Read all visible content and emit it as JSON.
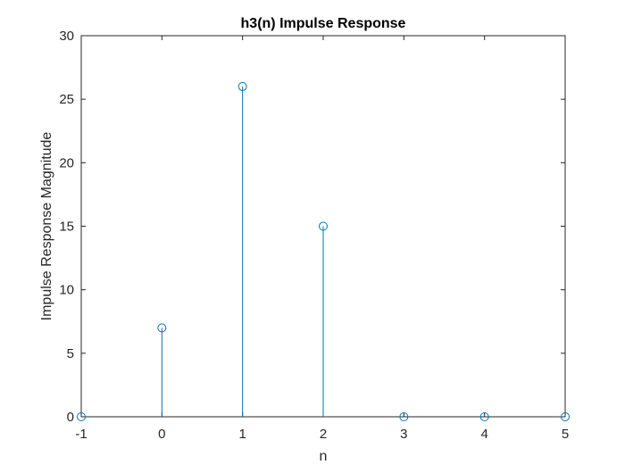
{
  "chart_data": {
    "type": "stem",
    "title": "h3(n) Impulse Response",
    "xlabel": "n",
    "ylabel": "Impulse Response Magnitude",
    "x": [
      -1,
      0,
      1,
      2,
      3,
      4,
      5
    ],
    "y": [
      0,
      7,
      26,
      15,
      0,
      0,
      0
    ],
    "xlim": [
      -1,
      5
    ],
    "ylim": [
      0,
      30
    ],
    "xticks": [
      -1,
      0,
      1,
      2,
      3,
      4,
      5
    ],
    "yticks": [
      0,
      5,
      10,
      15,
      20,
      25,
      30
    ],
    "xtick_labels": [
      "-1",
      "0",
      "1",
      "2",
      "3",
      "4",
      "5"
    ],
    "ytick_labels": [
      "0",
      "5",
      "10",
      "15",
      "20",
      "25",
      "30"
    ],
    "grid": false,
    "marker": "open-circle",
    "colors": {
      "series": "#0072BD",
      "axes": "#262626"
    }
  }
}
